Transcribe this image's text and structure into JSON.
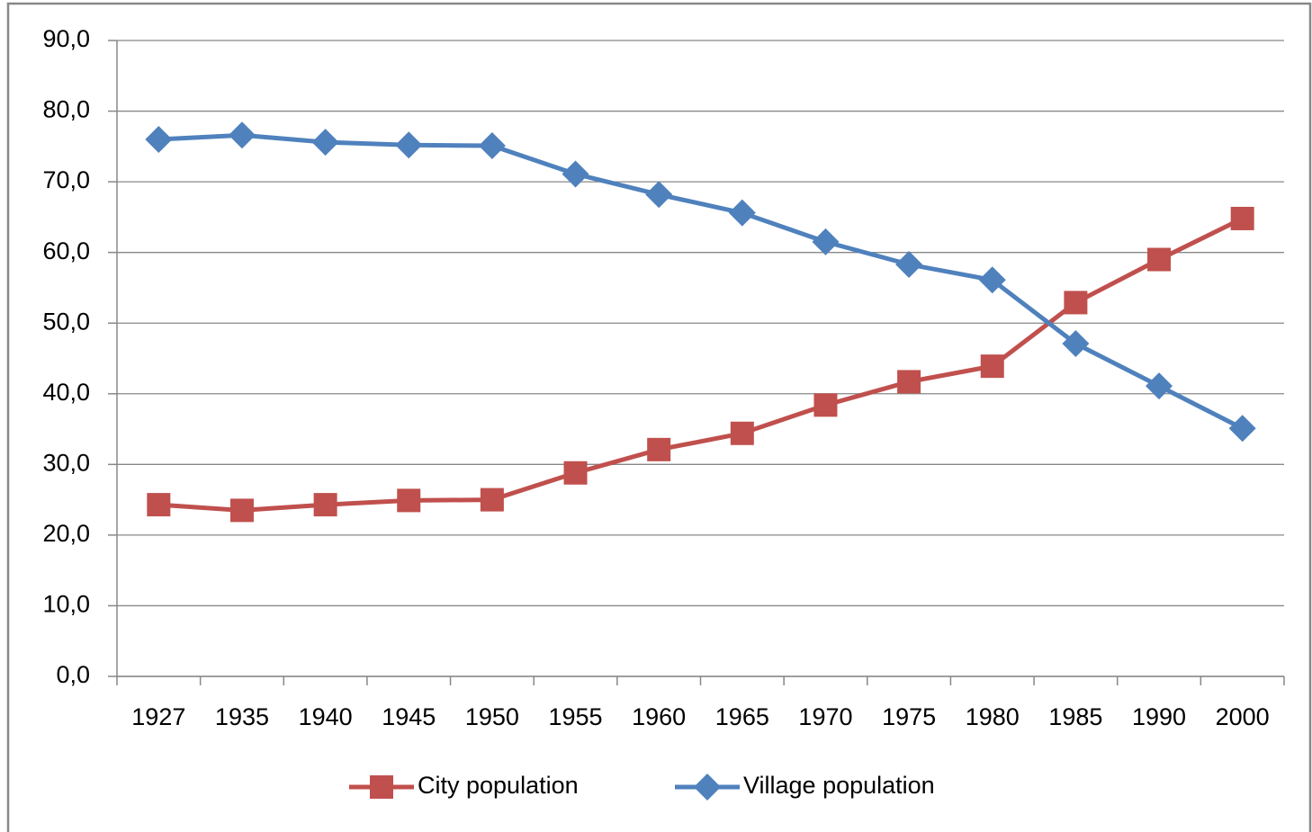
{
  "chart_data": {
    "type": "line",
    "categories": [
      "1927",
      "1935",
      "1940",
      "1945",
      "1950",
      "1955",
      "1960",
      "1965",
      "1970",
      "1975",
      "1980",
      "1985",
      "1990",
      "2000"
    ],
    "series": [
      {
        "name": "City population",
        "color": "#c0504d",
        "values": [
          24.3,
          23.5,
          24.3,
          24.9,
          25.0,
          28.8,
          32.1,
          34.4,
          38.4,
          41.7,
          43.9,
          52.9,
          59.0,
          64.8
        ]
      },
      {
        "name": "Village population",
        "color": "#4f81bd",
        "values": [
          76.0,
          76.6,
          75.6,
          75.2,
          75.1,
          71.1,
          68.2,
          65.6,
          61.5,
          58.3,
          56.1,
          47.1,
          41.1,
          35.1
        ]
      }
    ],
    "ylim": [
      0,
      90
    ],
    "yticks": [
      {
        "value": 0,
        "label": "0,0"
      },
      {
        "value": 10,
        "label": "10,0"
      },
      {
        "value": 20,
        "label": "20,0"
      },
      {
        "value": 30,
        "label": "30,0"
      },
      {
        "value": 40,
        "label": "40,0"
      },
      {
        "value": 50,
        "label": "50,0"
      },
      {
        "value": 60,
        "label": "60,0"
      },
      {
        "value": 70,
        "label": "70,0"
      },
      {
        "value": 80,
        "label": "80,0"
      },
      {
        "value": 90,
        "label": "90,0"
      }
    ],
    "grid": true,
    "legend": "bottom"
  }
}
